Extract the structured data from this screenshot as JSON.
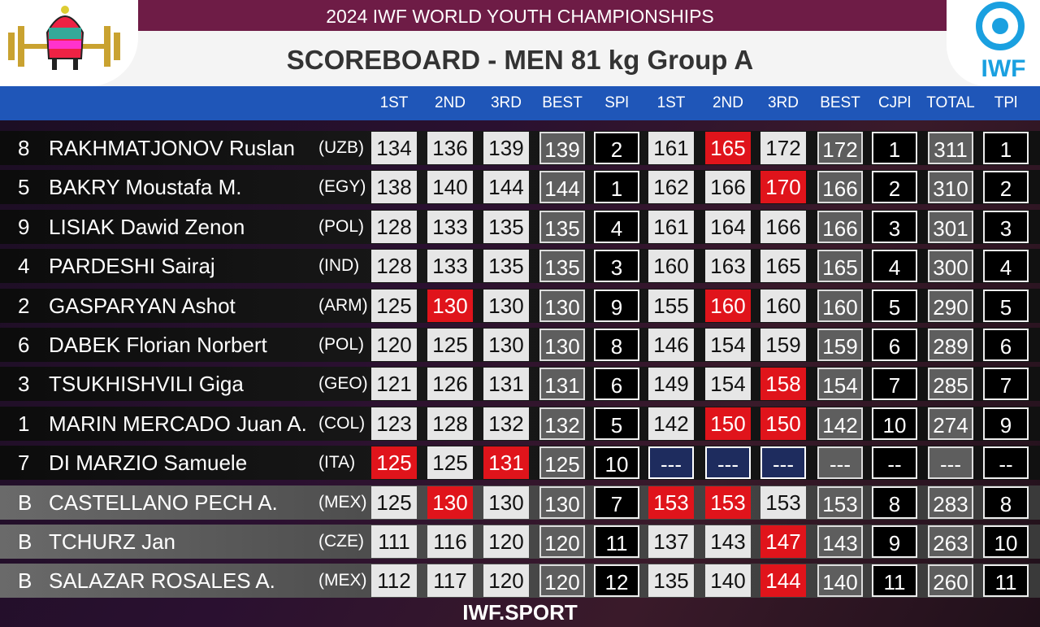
{
  "header": {
    "title": "2024 IWF WORLD YOUTH CHAMPIONSHIPS",
    "subtitle": "SCOREBOARD - MEN 81 kg Group A",
    "logo_text": "IWF"
  },
  "columns": [
    {
      "label": "1ST",
      "kind": "lift"
    },
    {
      "label": "2ND",
      "kind": "lift"
    },
    {
      "label": "3RD",
      "kind": "lift"
    },
    {
      "label": "BEST",
      "kind": "best"
    },
    {
      "label": "SPl",
      "kind": "rank"
    },
    {
      "label": "1ST",
      "kind": "lift"
    },
    {
      "label": "2ND",
      "kind": "lift"
    },
    {
      "label": "3RD",
      "kind": "lift"
    },
    {
      "label": "BEST",
      "kind": "best"
    },
    {
      "label": "CJPl",
      "kind": "rank"
    },
    {
      "label": "TOTAL",
      "kind": "best"
    },
    {
      "label": "TPl",
      "kind": "rank"
    }
  ],
  "rows": [
    {
      "lot": "8",
      "name": "RAKHMATJONOV Ruslan",
      "nation": "(UZB)",
      "shade": "dark",
      "cells": [
        134,
        136,
        139,
        139,
        2,
        161,
        165,
        172,
        172,
        1,
        311,
        1
      ],
      "status": [
        "good",
        "good",
        "good",
        "good",
        "fail",
        "good"
      ]
    },
    {
      "lot": "5",
      "name": "BAKRY Moustafa M.",
      "nation": "(EGY)",
      "shade": "dark",
      "cells": [
        138,
        140,
        144,
        144,
        1,
        162,
        166,
        170,
        166,
        2,
        310,
        2
      ],
      "status": [
        "good",
        "good",
        "good",
        "good",
        "good",
        "fail"
      ]
    },
    {
      "lot": "9",
      "name": "LISIAK Dawid Zenon",
      "nation": "(POL)",
      "shade": "dark",
      "cells": [
        128,
        133,
        135,
        135,
        4,
        161,
        164,
        166,
        166,
        3,
        301,
        3
      ],
      "status": [
        "good",
        "good",
        "good",
        "good",
        "good",
        "good"
      ]
    },
    {
      "lot": "4",
      "name": "PARDESHI Sairaj",
      "nation": "(IND)",
      "shade": "dark",
      "cells": [
        128,
        133,
        135,
        135,
        3,
        160,
        163,
        165,
        165,
        4,
        300,
        4
      ],
      "status": [
        "good",
        "good",
        "good",
        "good",
        "good",
        "good"
      ]
    },
    {
      "lot": "2",
      "name": "GASPARYAN Ashot",
      "nation": "(ARM)",
      "shade": "dark",
      "cells": [
        125,
        130,
        130,
        130,
        9,
        155,
        160,
        160,
        160,
        5,
        290,
        5
      ],
      "status": [
        "good",
        "fail",
        "good",
        "good",
        "fail",
        "good"
      ]
    },
    {
      "lot": "6",
      "name": "DABEK Florian Norbert",
      "nation": "(POL)",
      "shade": "dark",
      "cells": [
        120,
        125,
        130,
        130,
        8,
        146,
        154,
        159,
        159,
        6,
        289,
        6
      ],
      "status": [
        "good",
        "good",
        "good",
        "good",
        "good",
        "good"
      ]
    },
    {
      "lot": "3",
      "name": "TSUKHISHVILI Giga",
      "nation": "(GEO)",
      "shade": "dark",
      "cells": [
        121,
        126,
        131,
        131,
        6,
        149,
        154,
        158,
        154,
        7,
        285,
        7
      ],
      "status": [
        "good",
        "good",
        "good",
        "good",
        "good",
        "fail"
      ]
    },
    {
      "lot": "1",
      "name": "MARIN MERCADO Juan A.",
      "nation": "(COL)",
      "shade": "dark",
      "cells": [
        123,
        128,
        132,
        132,
        5,
        142,
        150,
        150,
        142,
        10,
        274,
        9
      ],
      "status": [
        "good",
        "good",
        "good",
        "good",
        "fail",
        "fail"
      ]
    },
    {
      "lot": "7",
      "name": "DI MARZIO Samuele",
      "nation": "(ITA)",
      "shade": "dark",
      "cells": [
        125,
        125,
        131,
        125,
        10,
        "---",
        "---",
        "---",
        "---",
        "--",
        "---",
        "--"
      ],
      "status": [
        "fail",
        "good",
        "fail",
        "none",
        "none",
        "none"
      ]
    },
    {
      "lot": "B",
      "name": "CASTELLANO PECH A.",
      "nation": "(MEX)",
      "shade": "light",
      "cells": [
        125,
        130,
        130,
        130,
        7,
        153,
        153,
        153,
        153,
        8,
        283,
        8
      ],
      "status": [
        "good",
        "fail",
        "good",
        "fail",
        "fail",
        "good"
      ]
    },
    {
      "lot": "B",
      "name": "TCHURZ Jan",
      "nation": "(CZE)",
      "shade": "light",
      "cells": [
        111,
        116,
        120,
        120,
        11,
        137,
        143,
        147,
        143,
        9,
        263,
        10
      ],
      "status": [
        "good",
        "good",
        "good",
        "good",
        "good",
        "fail"
      ]
    },
    {
      "lot": "B",
      "name": "SALAZAR ROSALES A.",
      "nation": "(MEX)",
      "shade": "light",
      "cells": [
        112,
        117,
        120,
        120,
        12,
        135,
        140,
        144,
        140,
        11,
        260,
        11
      ],
      "status": [
        "good",
        "good",
        "good",
        "good",
        "good",
        "fail"
      ]
    }
  ],
  "footer": "IWF.SPORT"
}
